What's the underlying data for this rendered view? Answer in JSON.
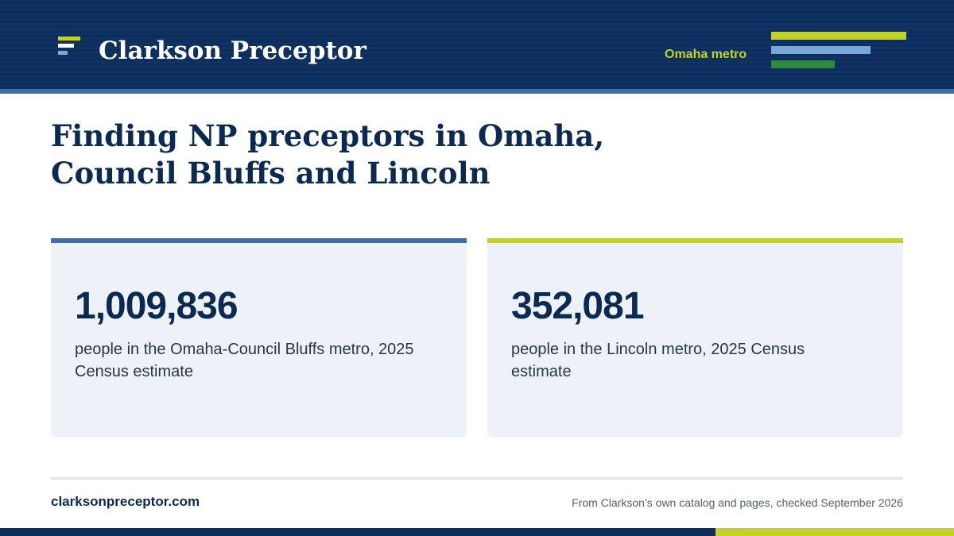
{
  "header": {
    "brand": "Clarkson Preceptor",
    "region": "Omaha metro",
    "logo_icon": "stacked-bars-logo-icon",
    "decorative_icon": "bar-graphic-icon"
  },
  "headline": {
    "line1": "Finding NP preceptors in Omaha,",
    "line2": "Council Bluffs and Lincoln"
  },
  "stats": [
    {
      "value": "1,009,836",
      "description": "people in the Omaha-Council Bluffs metro, 2025 Census estimate",
      "accent": "#3f6ea8"
    },
    {
      "value": "352,081",
      "description": "people in the Lincoln metro, 2025 Census estimate",
      "accent": "#c3d321"
    }
  ],
  "footer": {
    "site": "clarksonpreceptor.com",
    "source": "From Clarkson’s own catalog and pages, checked September 2026"
  },
  "colors": {
    "navy": "#0d2f5f",
    "blue": "#3f6ea8",
    "lime": "#c3d321",
    "green": "#2e8b3a",
    "light_blue": "#7aa8d6",
    "card_bg": "#edf2f9"
  }
}
